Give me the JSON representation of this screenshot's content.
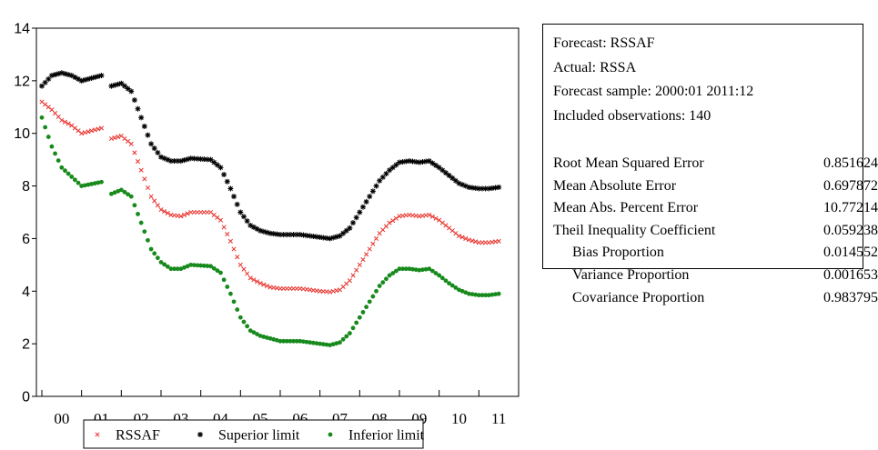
{
  "chart_data": {
    "type": "line",
    "x_tick_labels": [
      "00",
      "01",
      "02",
      "03",
      "04",
      "05",
      "06",
      "07",
      "08",
      "09",
      "10",
      "11"
    ],
    "y_ticks": [
      "0",
      "2",
      "4",
      "6",
      "8",
      "10",
      "12",
      "14"
    ],
    "ylim": [
      0,
      14
    ],
    "x_range_years": [
      2000,
      2012
    ],
    "grid": false,
    "legend_placement": "bottom",
    "series": [
      {
        "name": "RSSAF",
        "color": "#e8302a",
        "marker": "x",
        "keypoints": [
          [
            2000.0,
            11.2
          ],
          [
            2000.25,
            10.9
          ],
          [
            2000.5,
            10.5
          ],
          [
            2000.75,
            10.3
          ],
          [
            2001.0,
            10.0
          ],
          [
            2001.5,
            10.2
          ],
          [
            2001.75,
            9.8
          ],
          [
            2002.0,
            9.9
          ],
          [
            2002.25,
            9.6
          ],
          [
            2002.5,
            8.6
          ],
          [
            2002.75,
            7.6
          ],
          [
            2003.0,
            7.1
          ],
          [
            2003.25,
            6.9
          ],
          [
            2003.5,
            6.85
          ],
          [
            2003.75,
            7.0
          ],
          [
            2004.25,
            7.0
          ],
          [
            2004.5,
            6.7
          ],
          [
            2004.75,
            5.9
          ],
          [
            2005.0,
            5.0
          ],
          [
            2005.25,
            4.5
          ],
          [
            2005.5,
            4.3
          ],
          [
            2005.75,
            4.15
          ],
          [
            2006.0,
            4.1
          ],
          [
            2006.5,
            4.1
          ],
          [
            2006.75,
            4.05
          ],
          [
            2007.0,
            4.0
          ],
          [
            2007.25,
            3.97
          ],
          [
            2007.5,
            4.05
          ],
          [
            2007.75,
            4.4
          ],
          [
            2008.0,
            5.0
          ],
          [
            2008.25,
            5.6
          ],
          [
            2008.5,
            6.2
          ],
          [
            2008.75,
            6.6
          ],
          [
            2009.0,
            6.85
          ],
          [
            2009.25,
            6.9
          ],
          [
            2009.5,
            6.85
          ],
          [
            2009.75,
            6.9
          ],
          [
            2010.0,
            6.7
          ],
          [
            2010.25,
            6.4
          ],
          [
            2010.5,
            6.1
          ],
          [
            2010.75,
            5.95
          ],
          [
            2011.0,
            5.85
          ],
          [
            2011.25,
            5.85
          ],
          [
            2011.5,
            5.9
          ]
        ]
      },
      {
        "name": "Superior limit",
        "color": "#000000",
        "marker": "asterisk",
        "keypoints": [
          [
            2000.0,
            11.8
          ],
          [
            2000.25,
            12.2
          ],
          [
            2000.5,
            12.3
          ],
          [
            2000.75,
            12.2
          ],
          [
            2001.0,
            12.0
          ],
          [
            2001.5,
            12.2
          ],
          [
            2001.75,
            11.8
          ],
          [
            2002.0,
            11.9
          ],
          [
            2002.25,
            11.6
          ],
          [
            2002.5,
            10.6
          ],
          [
            2002.75,
            9.6
          ],
          [
            2003.0,
            9.1
          ],
          [
            2003.25,
            8.95
          ],
          [
            2003.5,
            8.95
          ],
          [
            2003.75,
            9.05
          ],
          [
            2004.25,
            9.0
          ],
          [
            2004.5,
            8.7
          ],
          [
            2004.75,
            7.9
          ],
          [
            2005.0,
            7.0
          ],
          [
            2005.25,
            6.5
          ],
          [
            2005.5,
            6.3
          ],
          [
            2005.75,
            6.2
          ],
          [
            2006.0,
            6.15
          ],
          [
            2006.5,
            6.15
          ],
          [
            2006.75,
            6.1
          ],
          [
            2007.0,
            6.05
          ],
          [
            2007.25,
            6.0
          ],
          [
            2007.5,
            6.1
          ],
          [
            2007.75,
            6.4
          ],
          [
            2008.0,
            7.0
          ],
          [
            2008.25,
            7.6
          ],
          [
            2008.5,
            8.2
          ],
          [
            2008.75,
            8.6
          ],
          [
            2009.0,
            8.9
          ],
          [
            2009.25,
            8.95
          ],
          [
            2009.5,
            8.9
          ],
          [
            2009.75,
            8.95
          ],
          [
            2010.0,
            8.7
          ],
          [
            2010.25,
            8.4
          ],
          [
            2010.5,
            8.1
          ],
          [
            2010.75,
            7.95
          ],
          [
            2011.0,
            7.9
          ],
          [
            2011.25,
            7.9
          ],
          [
            2011.5,
            7.95
          ]
        ]
      },
      {
        "name": "Inferior limit",
        "color": "#178a1c",
        "marker": "dot",
        "keypoints": [
          [
            2000.0,
            10.6
          ],
          [
            2000.25,
            9.5
          ],
          [
            2000.5,
            8.7
          ],
          [
            2000.75,
            8.35
          ],
          [
            2001.0,
            8.0
          ],
          [
            2001.5,
            8.15
          ],
          [
            2001.75,
            7.7
          ],
          [
            2002.0,
            7.85
          ],
          [
            2002.25,
            7.6
          ],
          [
            2002.5,
            6.6
          ],
          [
            2002.75,
            5.6
          ],
          [
            2003.0,
            5.1
          ],
          [
            2003.25,
            4.85
          ],
          [
            2003.5,
            4.85
          ],
          [
            2003.75,
            5.0
          ],
          [
            2004.25,
            4.95
          ],
          [
            2004.5,
            4.7
          ],
          [
            2004.75,
            3.9
          ],
          [
            2005.0,
            3.0
          ],
          [
            2005.25,
            2.5
          ],
          [
            2005.5,
            2.3
          ],
          [
            2005.75,
            2.2
          ],
          [
            2006.0,
            2.1
          ],
          [
            2006.5,
            2.1
          ],
          [
            2006.75,
            2.05
          ],
          [
            2007.0,
            2.0
          ],
          [
            2007.25,
            1.95
          ],
          [
            2007.5,
            2.05
          ],
          [
            2007.75,
            2.4
          ],
          [
            2008.0,
            3.0
          ],
          [
            2008.25,
            3.6
          ],
          [
            2008.5,
            4.2
          ],
          [
            2008.75,
            4.6
          ],
          [
            2009.0,
            4.85
          ],
          [
            2009.25,
            4.85
          ],
          [
            2009.5,
            4.8
          ],
          [
            2009.75,
            4.85
          ],
          [
            2010.0,
            4.6
          ],
          [
            2010.25,
            4.3
          ],
          [
            2010.5,
            4.05
          ],
          [
            2010.75,
            3.9
          ],
          [
            2011.0,
            3.85
          ],
          [
            2011.25,
            3.85
          ],
          [
            2011.5,
            3.9
          ]
        ]
      }
    ]
  },
  "stats": {
    "header": [
      "Forecast: RSSAF",
      "Actual: RSSA",
      "Forecast sample: 2000:01 2011:12",
      "Included observations: 140"
    ],
    "rows": [
      {
        "label": "Root Mean Squared Error",
        "value": "0.851624",
        "indent": false
      },
      {
        "label": "Mean Absolute Error",
        "value": "0.697872",
        "indent": false
      },
      {
        "label": "Mean Abs. Percent Error",
        "value": "10.77214",
        "indent": false
      },
      {
        "label": "Theil Inequality Coefficient",
        "value": "0.059238",
        "indent": false
      },
      {
        "label": "Bias Proportion",
        "value": "0.014552",
        "indent": true
      },
      {
        "label": "Variance Proportion",
        "value": "0.001653",
        "indent": true
      },
      {
        "label": "Covariance Proportion",
        "value": "0.983795",
        "indent": true
      }
    ]
  }
}
